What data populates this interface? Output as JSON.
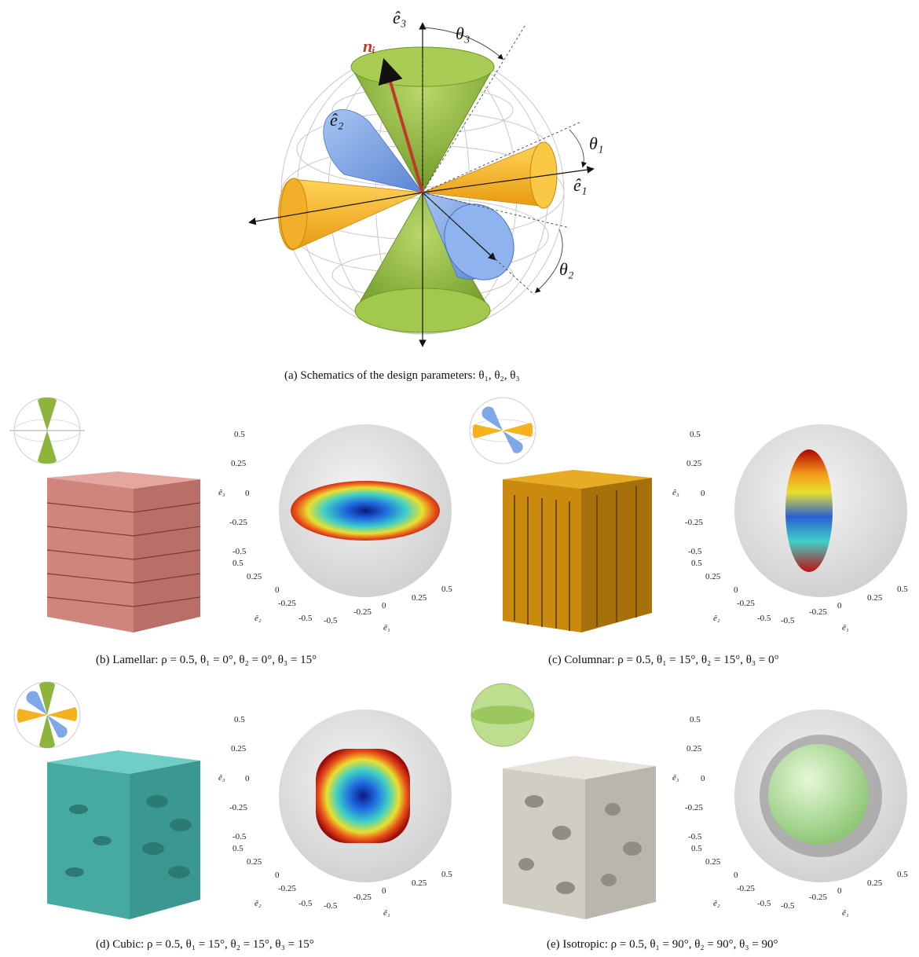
{
  "panel_a": {
    "caption": "(a) Schematics of the design parameters: θ₁, θ₂, θ₃",
    "labels": {
      "e3": "ê₃",
      "e2": "ê₂",
      "e1": "ê₁",
      "ni": "nᵢ",
      "theta1": "θ₁",
      "theta2": "θ₂",
      "theta3": "θ₃"
    },
    "colors": {
      "green": "#8db53c",
      "orange": "#f5b21e",
      "blue": "#7fa8e8",
      "normal": "#c0392b"
    }
  },
  "axes_ticks": {
    "z": [
      "0.5",
      "0.25",
      "0",
      "-0.25",
      "-0.5"
    ],
    "e1": [
      "-0.5",
      "-0.25",
      "0",
      "0.25",
      "0.5"
    ],
    "e2": [
      "0.5",
      "0.25",
      "0",
      "-0.25",
      "-0.5"
    ],
    "e1_label": "ê₁",
    "e2_label": "ê₂",
    "e3_label": "ê₃"
  },
  "panels": [
    {
      "id": "b",
      "caption": "(b) Lamellar: ρ = 0.5, θ₁ = 0°, θ₂ = 0°, θ₃ = 15°",
      "structure_color": "#d98c84"
    },
    {
      "id": "c",
      "caption": "(c) Columnar: ρ = 0.5, θ₁ = 15°, θ₂ = 15°, θ₃ = 0°",
      "structure_color": "#d4960f"
    },
    {
      "id": "d",
      "caption": "(d) Cubic: ρ = 0.5, θ₁ = 15°, θ₂ = 15°, θ₃ = 15°",
      "structure_color": "#4fb8b0"
    },
    {
      "id": "e",
      "caption": "(e) Isotropic: ρ = 0.5, θ₁ = 90°, θ₂ = 90°, θ₃ = 90°",
      "structure_color": "#d2d0c8"
    }
  ]
}
